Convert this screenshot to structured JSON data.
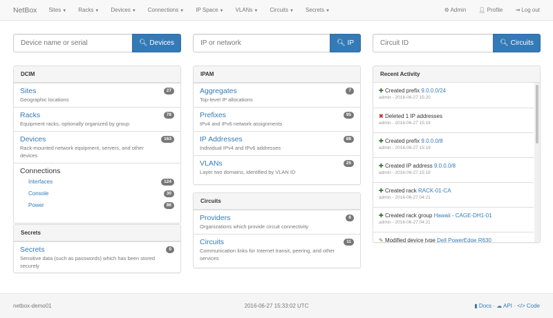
{
  "nav": {
    "brand": "NetBox",
    "menus": [
      "Sites",
      "Racks",
      "Devices",
      "Connections",
      "IP Space",
      "VLANs",
      "Circuits",
      "Secrets"
    ],
    "admin": "Admin",
    "profile": "Profile",
    "logout": "Log out"
  },
  "search": {
    "devices": {
      "placeholder": "Device name or serial",
      "button": "Devices"
    },
    "ip": {
      "placeholder": "IP or network",
      "button": "IP"
    },
    "circuits": {
      "placeholder": "Circuit ID",
      "button": "Circuits"
    }
  },
  "dcim": {
    "title": "DCIM",
    "items": [
      {
        "label": "Sites",
        "desc": "Geographic locations",
        "count": "27"
      },
      {
        "label": "Racks",
        "desc": "Equipment racks, optionally organized by group",
        "count": "78"
      },
      {
        "label": "Devices",
        "desc": "Rack-mounted network equipment, servers, and other devices",
        "count": "163"
      }
    ],
    "connections": {
      "label": "Connections",
      "items": [
        {
          "label": "Interfaces",
          "count": "124"
        },
        {
          "label": "Console",
          "count": "30"
        },
        {
          "label": "Power",
          "count": "86"
        }
      ]
    }
  },
  "secrets": {
    "title": "Secrets",
    "items": [
      {
        "label": "Secrets",
        "desc": "Sensitive data (such as passwords) which has been stored securely",
        "count": "0"
      }
    ]
  },
  "ipam": {
    "title": "IPAM",
    "items": [
      {
        "label": "Aggregates",
        "desc": "Top-level IP allocations",
        "count": "7"
      },
      {
        "label": "Prefixes",
        "desc": "IPv4 and IPv6 network assignments",
        "count": "95"
      },
      {
        "label": "IP Addresses",
        "desc": "Individual IPv4 and IPv6 addresses",
        "count": "88"
      },
      {
        "label": "VLANs",
        "desc": "Layer two domains, identified by VLAN ID",
        "count": "25"
      }
    ]
  },
  "circuits": {
    "title": "Circuits",
    "items": [
      {
        "label": "Providers",
        "desc": "Organizations which provide circuit connectivity",
        "count": "6"
      },
      {
        "label": "Circuits",
        "desc": "Communication links for Internet transit, peering, and other services",
        "count": "11"
      }
    ]
  },
  "activity": {
    "title": "Recent Activity",
    "items": [
      {
        "icon": "plus",
        "text": "Created prefix",
        "link": "9.0.0.0/24",
        "meta": "admin - 2016-06-27 15:20"
      },
      {
        "icon": "remove",
        "text": "Deleted 1 IP addresses",
        "link": "",
        "meta": "admin - 2016-06-27 15:19"
      },
      {
        "icon": "plus",
        "text": "Created prefix",
        "link": "9.0.0.0/8",
        "meta": "admin - 2016-06-27 15:19"
      },
      {
        "icon": "plus",
        "text": "Created IP address",
        "link": "9.0.0.0/8",
        "meta": "admin - 2016-06-27 15:18"
      },
      {
        "icon": "plus",
        "text": "Created rack",
        "link": "RACK-01-CA",
        "meta": "admin - 2016-06-27 04:21"
      },
      {
        "icon": "plus",
        "text": "Created rack group",
        "link": "Hawaii - CAGE-DH1-01",
        "meta": "admin - 2016-06-27 04:21"
      },
      {
        "icon": "pencil",
        "text": "Modified device type",
        "link": "Dell PowerEdge R630",
        "meta": ""
      }
    ]
  },
  "footer": {
    "host": "netbox-demo01",
    "time": "2016-06-27 15:33:02 UTC",
    "docs": "Docs",
    "api": "API",
    "code": "Code"
  },
  "colors": {
    "primary": "#337ab7",
    "badge": "#777777",
    "create": "#3c763d",
    "delete": "#c9302c"
  }
}
